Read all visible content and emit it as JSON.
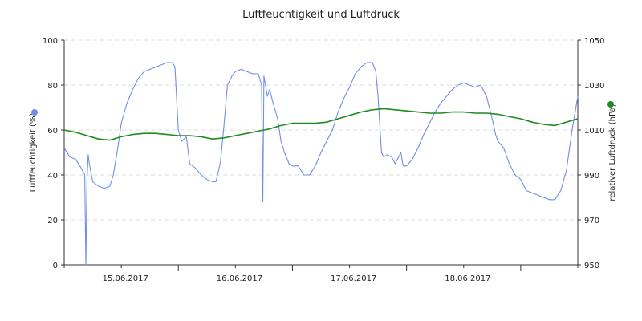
{
  "chart_data": {
    "type": "line",
    "title": "Luftfeuchtigkeit und Luftdruck",
    "x_unit": "days since 14.06.2017 00:00 (tick dates are the axis labels)",
    "x_range": [
      0,
      4.5
    ],
    "grid": true,
    "legend": "axis-side markers (left blue, right green)",
    "x_ticks": [
      {
        "x": 1.0,
        "label": "15.06.2017"
      },
      {
        "x": 2.0,
        "label": "16.06.2017"
      },
      {
        "x": 3.0,
        "label": "17.06.2017"
      },
      {
        "x": 4.0,
        "label": "18.06.2017"
      }
    ],
    "x_minor_ticks": [
      0,
      0.5,
      1.5,
      2.5,
      3.5,
      4.5
    ],
    "y_left": {
      "label": "Luftfeuchtigkeit (%)",
      "range": [
        0,
        100
      ],
      "ticks": [
        "0",
        "20",
        "40",
        "60",
        "80",
        "100"
      ]
    },
    "y_right": {
      "label": "relativer Luftdruck (hPa)",
      "range": [
        950,
        1050
      ],
      "ticks": [
        "950",
        "970",
        "990",
        "1010",
        "1030",
        "1050"
      ]
    },
    "series": [
      {
        "axis": "left",
        "color": "#6f8fe6",
        "points": [
          [
            0.0,
            52
          ],
          [
            0.05,
            48
          ],
          [
            0.1,
            47
          ],
          [
            0.15,
            43
          ],
          [
            0.18,
            40
          ],
          [
            0.19,
            0
          ],
          [
            0.2,
            38
          ],
          [
            0.21,
            49
          ],
          [
            0.22,
            45
          ],
          [
            0.25,
            37
          ],
          [
            0.3,
            35
          ],
          [
            0.35,
            34
          ],
          [
            0.4,
            35
          ],
          [
            0.43,
            40
          ],
          [
            0.47,
            52
          ],
          [
            0.5,
            63
          ],
          [
            0.55,
            72
          ],
          [
            0.6,
            78
          ],
          [
            0.65,
            83
          ],
          [
            0.7,
            86
          ],
          [
            0.8,
            88
          ],
          [
            0.9,
            90
          ],
          [
            0.95,
            90
          ],
          [
            0.97,
            88
          ],
          [
            1.0,
            60
          ],
          [
            1.03,
            55
          ],
          [
            1.07,
            57
          ],
          [
            1.1,
            45
          ],
          [
            1.15,
            43
          ],
          [
            1.2,
            40
          ],
          [
            1.25,
            38
          ],
          [
            1.3,
            37
          ],
          [
            1.33,
            37
          ],
          [
            1.37,
            46
          ],
          [
            1.4,
            62
          ],
          [
            1.43,
            80
          ],
          [
            1.47,
            84
          ],
          [
            1.5,
            86
          ],
          [
            1.55,
            87
          ],
          [
            1.6,
            86
          ],
          [
            1.65,
            85
          ],
          [
            1.7,
            85
          ],
          [
            1.73,
            80
          ],
          [
            1.74,
            28
          ],
          [
            1.75,
            84
          ],
          [
            1.78,
            75
          ],
          [
            1.8,
            78
          ],
          [
            1.83,
            72
          ],
          [
            1.87,
            65
          ],
          [
            1.9,
            55
          ],
          [
            1.93,
            50
          ],
          [
            1.97,
            45
          ],
          [
            2.0,
            44
          ],
          [
            2.05,
            44
          ],
          [
            2.1,
            40
          ],
          [
            2.15,
            40
          ],
          [
            2.2,
            44
          ],
          [
            2.25,
            50
          ],
          [
            2.3,
            55
          ],
          [
            2.35,
            60
          ],
          [
            2.4,
            68
          ],
          [
            2.45,
            74
          ],
          [
            2.5,
            79
          ],
          [
            2.55,
            85
          ],
          [
            2.6,
            88
          ],
          [
            2.65,
            90
          ],
          [
            2.7,
            90
          ],
          [
            2.73,
            86
          ],
          [
            2.75,
            75
          ],
          [
            2.78,
            50
          ],
          [
            2.8,
            48
          ],
          [
            2.83,
            49
          ],
          [
            2.87,
            48
          ],
          [
            2.9,
            45
          ],
          [
            2.95,
            50
          ],
          [
            2.97,
            44
          ],
          [
            3.0,
            44
          ],
          [
            3.05,
            47
          ],
          [
            3.1,
            52
          ],
          [
            3.15,
            58
          ],
          [
            3.2,
            63
          ],
          [
            3.25,
            68
          ],
          [
            3.3,
            72
          ],
          [
            3.35,
            75
          ],
          [
            3.4,
            78
          ],
          [
            3.45,
            80
          ],
          [
            3.5,
            81
          ],
          [
            3.55,
            80
          ],
          [
            3.6,
            79
          ],
          [
            3.65,
            80
          ],
          [
            3.7,
            75
          ],
          [
            3.75,
            65
          ],
          [
            3.78,
            58
          ],
          [
            3.8,
            55
          ],
          [
            3.85,
            52
          ],
          [
            3.9,
            45
          ],
          [
            3.95,
            40
          ],
          [
            4.0,
            38
          ],
          [
            4.05,
            33
          ],
          [
            4.1,
            32
          ],
          [
            4.15,
            31
          ],
          [
            4.2,
            30
          ],
          [
            4.25,
            29
          ],
          [
            4.3,
            29
          ],
          [
            4.35,
            33
          ],
          [
            4.4,
            42
          ],
          [
            4.45,
            60
          ],
          [
            4.5,
            75
          ]
        ]
      },
      {
        "axis": "right",
        "color": "#1e8c1e",
        "points": [
          [
            0.0,
            1010
          ],
          [
            0.1,
            1009
          ],
          [
            0.2,
            1007.5
          ],
          [
            0.3,
            1006
          ],
          [
            0.4,
            1005.5
          ],
          [
            0.5,
            1007
          ],
          [
            0.6,
            1008
          ],
          [
            0.7,
            1008.5
          ],
          [
            0.8,
            1008.5
          ],
          [
            0.9,
            1008
          ],
          [
            1.0,
            1007.5
          ],
          [
            1.1,
            1007.5
          ],
          [
            1.2,
            1007
          ],
          [
            1.3,
            1006
          ],
          [
            1.4,
            1006.5
          ],
          [
            1.5,
            1007.5
          ],
          [
            1.6,
            1008.5
          ],
          [
            1.7,
            1009.5
          ],
          [
            1.8,
            1010.5
          ],
          [
            1.9,
            1012
          ],
          [
            2.0,
            1013
          ],
          [
            2.1,
            1013
          ],
          [
            2.2,
            1013
          ],
          [
            2.3,
            1013.5
          ],
          [
            2.4,
            1015
          ],
          [
            2.5,
            1016.5
          ],
          [
            2.6,
            1018
          ],
          [
            2.7,
            1019
          ],
          [
            2.8,
            1019.5
          ],
          [
            2.9,
            1019
          ],
          [
            3.0,
            1018.5
          ],
          [
            3.1,
            1018
          ],
          [
            3.2,
            1017.5
          ],
          [
            3.3,
            1017.5
          ],
          [
            3.4,
            1018
          ],
          [
            3.5,
            1018
          ],
          [
            3.6,
            1017.5
          ],
          [
            3.7,
            1017.5
          ],
          [
            3.8,
            1017
          ],
          [
            3.9,
            1016
          ],
          [
            4.0,
            1015
          ],
          [
            4.1,
            1013.5
          ],
          [
            4.2,
            1012.5
          ],
          [
            4.3,
            1012
          ],
          [
            4.4,
            1013.5
          ],
          [
            4.5,
            1015
          ]
        ]
      }
    ]
  }
}
